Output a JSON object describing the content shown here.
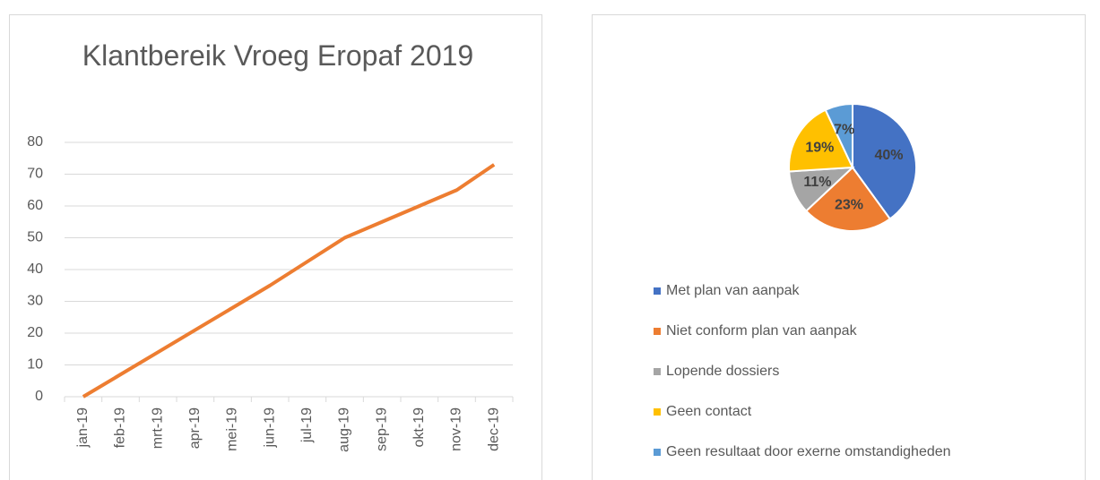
{
  "chart_data": [
    {
      "type": "line",
      "title": "Klantbereik Vroeg Eropaf 2019",
      "categories": [
        "jan-19",
        "feb-19",
        "mrt-19",
        "apr-19",
        "mei-19",
        "jun-19",
        "jul-19",
        "aug-19",
        "sep-19",
        "okt-19",
        "nov-19",
        "dec-19"
      ],
      "values": [
        0,
        7,
        14,
        21,
        28,
        35,
        42.5,
        50,
        55,
        60,
        65,
        73
      ],
      "color": "#ed7d31",
      "ylim": [
        0,
        80
      ],
      "yticks": [
        0,
        10,
        20,
        30,
        40,
        50,
        60,
        70,
        80
      ],
      "grid": true
    },
    {
      "type": "pie",
      "categories": [
        "Met plan van aanpak",
        "Niet conform plan van aanpak",
        "Lopende dossiers",
        "Geen contact",
        "Geen resultaat door exerne omstandigheden"
      ],
      "values": [
        40,
        23,
        11,
        19,
        7
      ],
      "value_labels": [
        "40%",
        "23%",
        "11%",
        "19%",
        "7%"
      ],
      "colors": [
        "#4472c4",
        "#ed7d31",
        "#a5a5a5",
        "#ffc000",
        "#5b9bd5"
      ],
      "legend": "bottom"
    }
  ]
}
